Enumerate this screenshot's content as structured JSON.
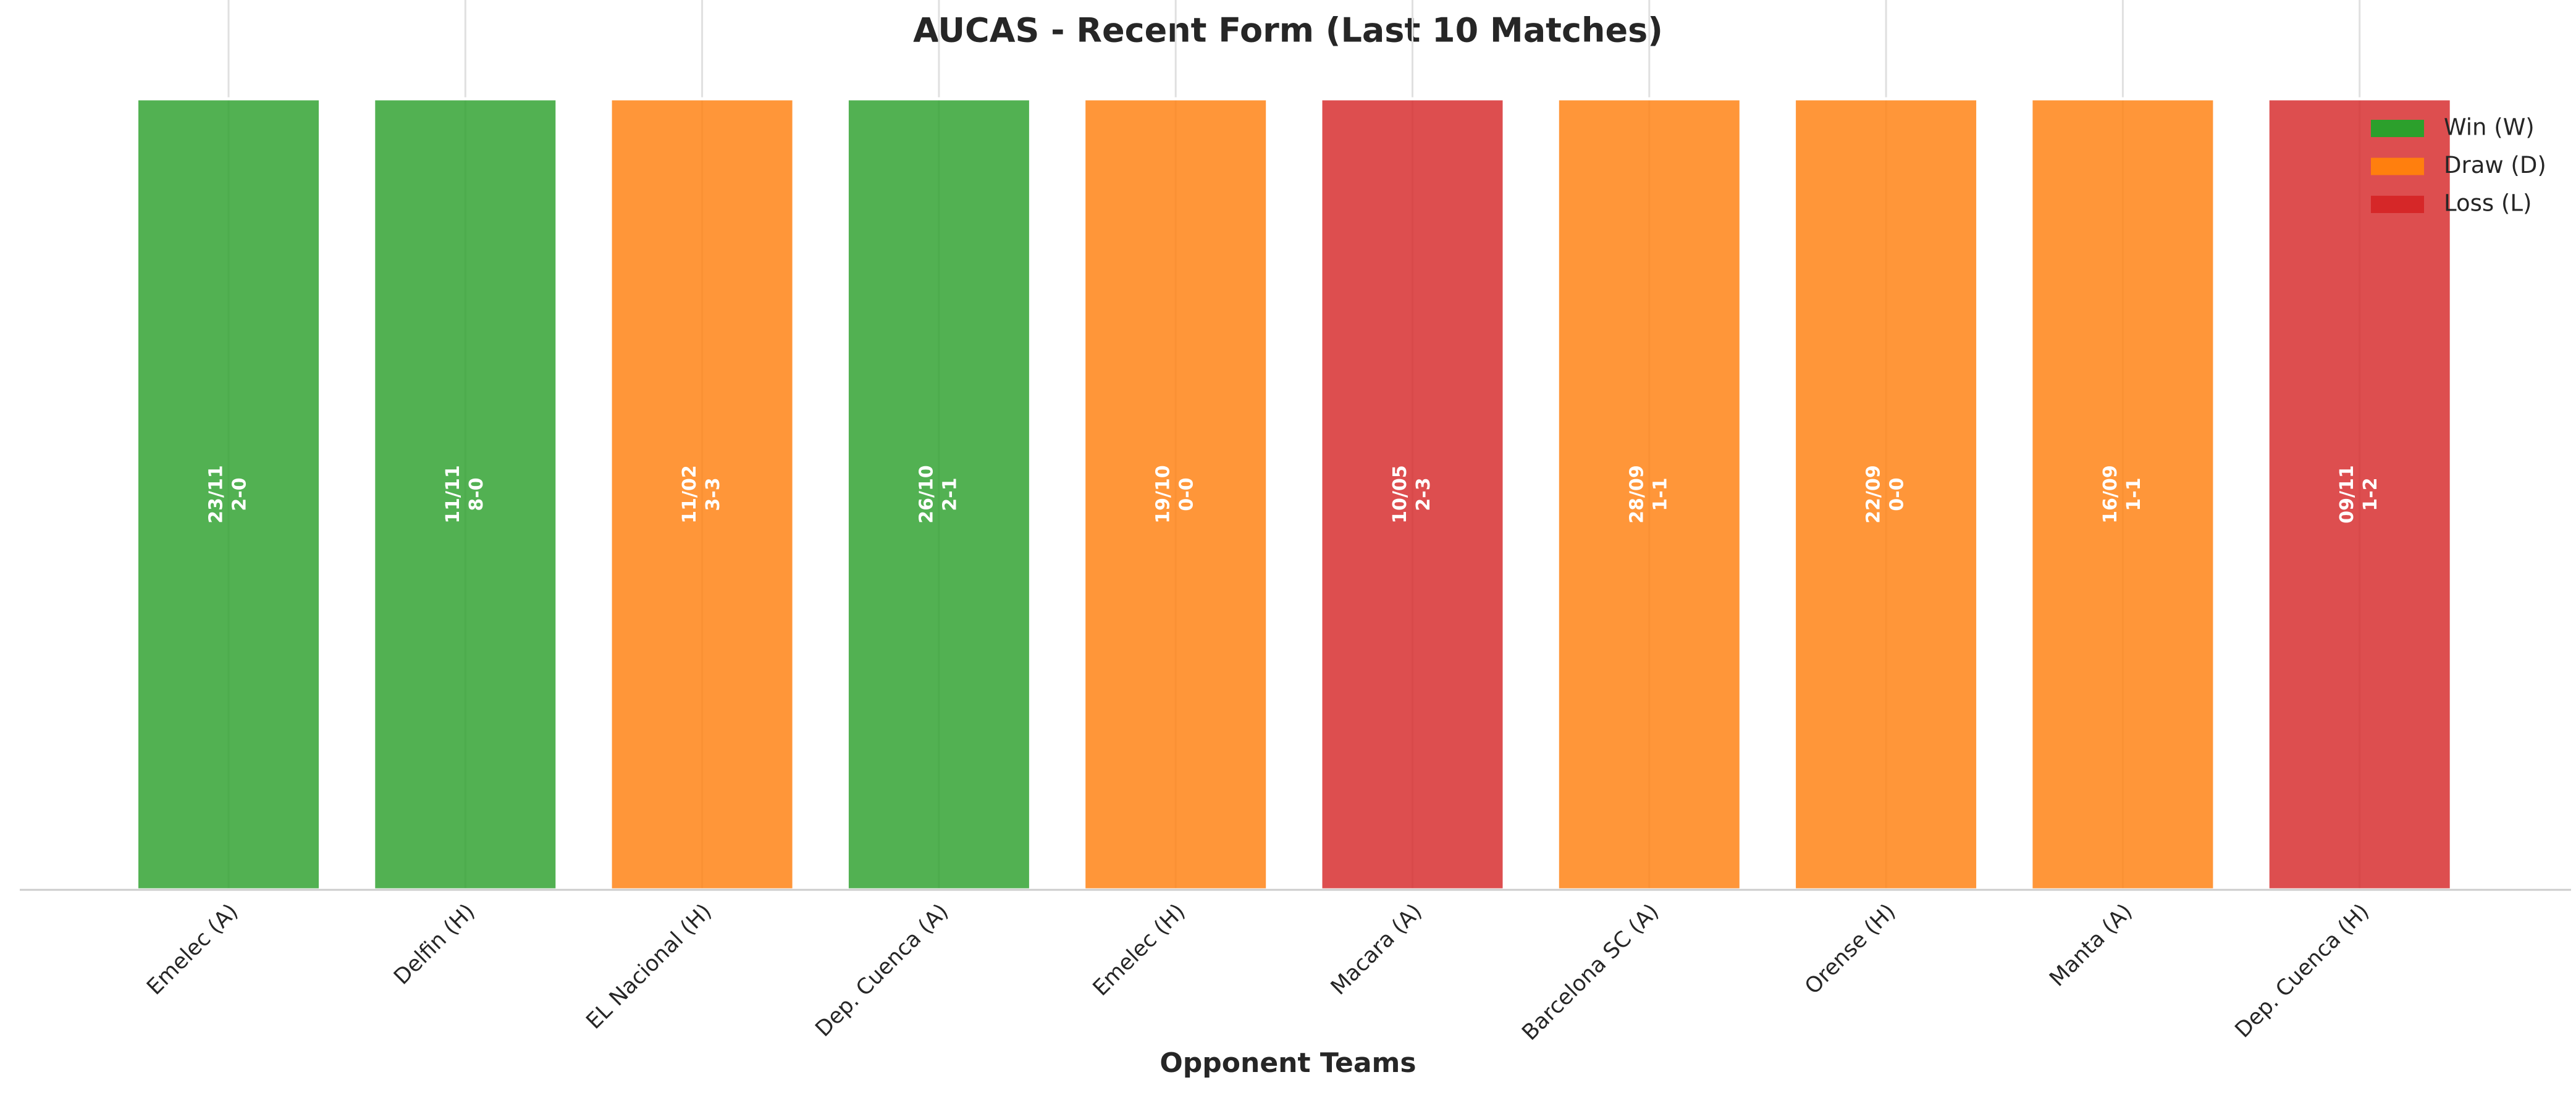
{
  "chart_data": {
    "type": "bar",
    "title": "AUCAS - Recent Form (Last 10 Matches)",
    "xlabel": "Opponent Teams",
    "categories": [
      "Emelec (A)",
      "Delfin (H)",
      "EL Nacional (H)",
      "Dep. Cuenca (A)",
      "Emelec (H)",
      "Macara (A)",
      "Barcelona SC (A)",
      "Orense (H)",
      "Manta (A)",
      "Dep. Cuenca (H)"
    ],
    "dates": [
      "23/11",
      "11/11",
      "11/02",
      "26/10",
      "19/10",
      "10/05",
      "28/09",
      "22/09",
      "16/09",
      "09/11"
    ],
    "scores": [
      "2-0",
      "8-0",
      "3-3",
      "2-1",
      "0-0",
      "2-3",
      "1-1",
      "0-0",
      "1-1",
      "1-2"
    ],
    "values": [
      1,
      1,
      1,
      1,
      1,
      1,
      1,
      1,
      1,
      1
    ],
    "colors": [
      "#2ca02c",
      "#2ca02c",
      "#ff7f0e",
      "#2ca02c",
      "#ff7f0e",
      "#d62728",
      "#ff7f0e",
      "#ff7f0e",
      "#ff7f0e",
      "#d62728"
    ],
    "ylim": [
      0,
      1
    ],
    "grid": true,
    "legend": {
      "position": "upper right",
      "entries": [
        {
          "name": "Win (W)",
          "color": "#2ca02c"
        },
        {
          "name": "Draw (D)",
          "color": "#ff7f0e"
        },
        {
          "name": "Loss (L)",
          "color": "#d62728"
        }
      ]
    }
  }
}
